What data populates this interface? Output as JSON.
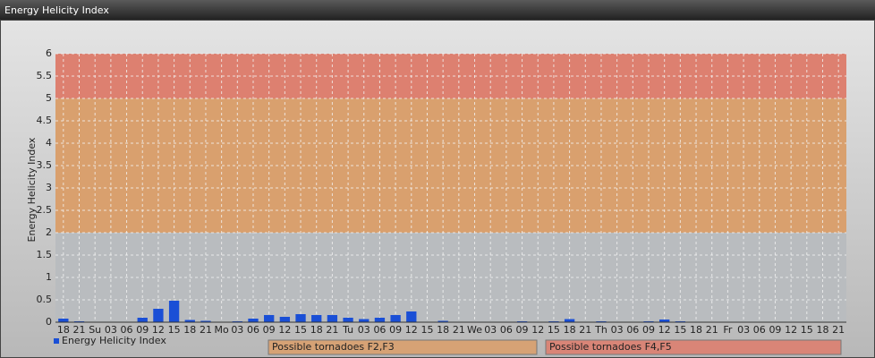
{
  "window_title": "Energy Helicity Index",
  "chart_data": {
    "type": "bar",
    "y_label": "Energy Helicity Index",
    "categories": [
      "18",
      "21",
      "Su",
      "03",
      "06",
      "09",
      "12",
      "15",
      "18",
      "21",
      "Mo",
      "03",
      "06",
      "09",
      "12",
      "15",
      "18",
      "21",
      "Tu",
      "03",
      "06",
      "09",
      "12",
      "15",
      "18",
      "21",
      "We",
      "03",
      "06",
      "09",
      "12",
      "15",
      "18",
      "21",
      "Th",
      "03",
      "06",
      "09",
      "12",
      "15",
      "18",
      "21",
      "Fr",
      "03",
      "06",
      "09",
      "12",
      "15",
      "18",
      "21"
    ],
    "series": [
      {
        "name": "Energy Helicity Index",
        "color": "#1a4fd6",
        "values": [
          0.08,
          0.02,
          0.01,
          0.01,
          0.01,
          0.1,
          0.3,
          0.48,
          0.05,
          0.03,
          0.01,
          0.02,
          0.08,
          0.16,
          0.12,
          0.18,
          0.16,
          0.16,
          0.1,
          0.07,
          0.1,
          0.16,
          0.24,
          0.01,
          0.03,
          0.01,
          0.01,
          0.01,
          0.01,
          0.02,
          0.01,
          0.02,
          0.07,
          0.01,
          0.02,
          0.01,
          0.01,
          0.02,
          0.06,
          0.02,
          0.01,
          0.01,
          0.01,
          0.01,
          0.01,
          0.01,
          0.01,
          0.01,
          0.01,
          0.01
        ]
      }
    ],
    "ylim": [
      0,
      6
    ],
    "yticks": [
      0,
      0.5,
      1,
      1.5,
      2,
      2.5,
      3,
      3.5,
      4,
      4.5,
      5,
      5.5,
      6
    ],
    "grid": true,
    "bands": [
      {
        "from": 0,
        "to": 2,
        "color": "#b9bcbf"
      },
      {
        "from": 2,
        "to": 5,
        "color": "#d9a06e",
        "label": "Possible tornadoes F2,F3"
      },
      {
        "from": 5,
        "to": 6,
        "color": "#dd8070",
        "label": "Possible tornadoes F4,F5"
      }
    ]
  }
}
